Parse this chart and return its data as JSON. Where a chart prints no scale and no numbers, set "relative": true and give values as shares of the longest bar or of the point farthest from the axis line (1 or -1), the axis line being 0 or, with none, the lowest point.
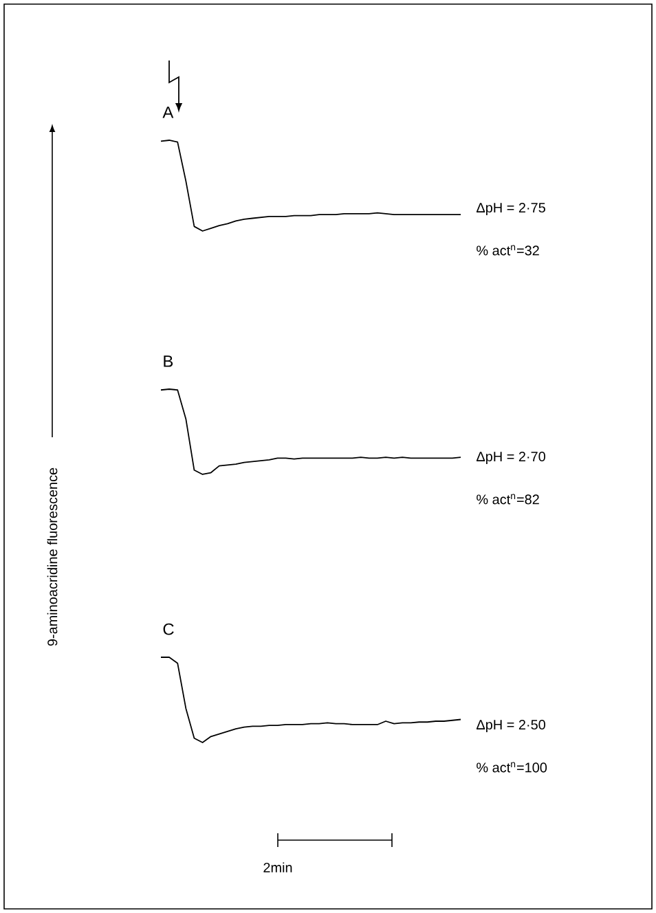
{
  "chart_data": [
    {
      "type": "line",
      "relative": true,
      "categories": [
        null,
        null,
        null,
        null,
        null,
        null,
        null,
        null,
        null,
        null,
        null,
        null,
        null,
        null,
        null,
        null,
        null,
        null,
        null,
        null,
        null,
        null,
        null,
        null,
        null,
        null,
        null,
        null,
        null,
        null,
        null,
        null,
        null,
        null,
        null,
        null,
        null
      ],
      "series": [
        {
          "color": "#000000",
          "values": [
            0.99,
            1.0,
            0.98,
            0.55,
            0.05,
            0.0,
            0.03,
            0.06,
            0.08,
            0.11,
            0.13,
            0.14,
            0.15,
            0.16,
            0.16,
            0.16,
            0.17,
            0.17,
            0.17,
            0.18,
            0.18,
            0.18,
            0.19,
            0.19,
            0.19,
            0.19,
            0.2,
            0.19,
            0.18,
            0.18,
            0.18,
            0.18,
            0.18,
            0.18,
            0.18,
            0.18,
            0.18
          ]
        }
      ],
      "annotations": [
        "A",
        "ΔpH = 2·75",
        "% act$^{n}$=32"
      ]
    },
    {
      "type": "line",
      "relative": true,
      "ylabel": "9-aminoacridine fluorescence",
      "categories": [
        null,
        null,
        null,
        null,
        null,
        null,
        null,
        null,
        null,
        null,
        null,
        null,
        null,
        null,
        null,
        null,
        null,
        null,
        null,
        null,
        null,
        null,
        null,
        null,
        null,
        null,
        null,
        null,
        null,
        null,
        null,
        null,
        null,
        null,
        null,
        null,
        null
      ],
      "series": [
        {
          "color": "#000000",
          "values": [
            0.99,
            1.0,
            0.99,
            0.65,
            0.05,
            0.0,
            0.02,
            0.1,
            0.11,
            0.12,
            0.14,
            0.15,
            0.16,
            0.17,
            0.19,
            0.19,
            0.18,
            0.19,
            0.19,
            0.19,
            0.19,
            0.19,
            0.19,
            0.19,
            0.2,
            0.19,
            0.19,
            0.2,
            0.19,
            0.2,
            0.19,
            0.19,
            0.19,
            0.19,
            0.19,
            0.19,
            0.2
          ]
        }
      ],
      "annotations": [
        "B",
        "ΔpH = 2·70",
        "% act$^{n}$=82"
      ]
    },
    {
      "type": "line",
      "relative": true,
      "categories": [
        null,
        null,
        null,
        null,
        null,
        null,
        null,
        null,
        null,
        null,
        null,
        null,
        null,
        null,
        null,
        null,
        null,
        null,
        null,
        null,
        null,
        null,
        null,
        null,
        null,
        null,
        null,
        null,
        null,
        null,
        null,
        null,
        null,
        null,
        null,
        null,
        null
      ],
      "series": [
        {
          "color": "#000000",
          "values": [
            1.0,
            1.0,
            0.93,
            0.4,
            0.05,
            0.0,
            0.07,
            0.1,
            0.13,
            0.16,
            0.18,
            0.19,
            0.19,
            0.2,
            0.2,
            0.21,
            0.21,
            0.21,
            0.22,
            0.22,
            0.23,
            0.22,
            0.22,
            0.21,
            0.21,
            0.21,
            0.21,
            0.25,
            0.22,
            0.23,
            0.23,
            0.24,
            0.24,
            0.25,
            0.25,
            0.26,
            0.27
          ]
        }
      ],
      "annotations": [
        "C",
        "ΔpH = 2·50",
        "% act$^{n}$=100",
        "2min"
      ]
    }
  ]
}
